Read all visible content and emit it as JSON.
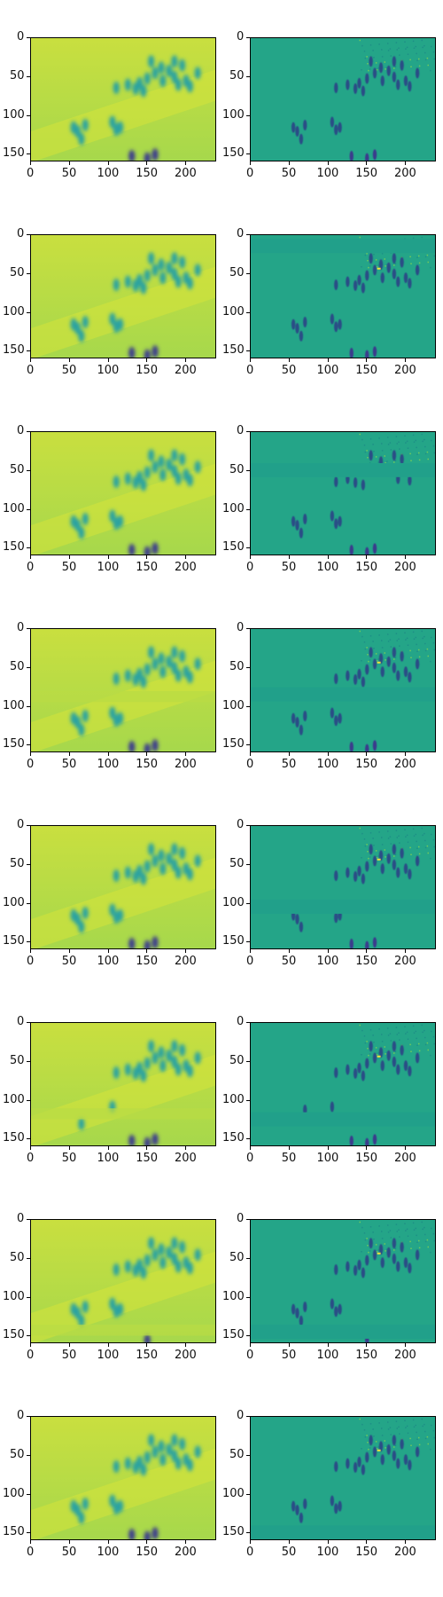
{
  "figure": {
    "type": "image-grid",
    "rows": 8,
    "cols": 2,
    "description_tags": [
      "reconstruction-left",
      "difference-right"
    ]
  },
  "axes": {
    "x_ticks": [
      "0",
      "50",
      "100",
      "150",
      "200"
    ],
    "x_tick_values": [
      0,
      50,
      100,
      150,
      200
    ],
    "y_ticks": [
      "0",
      "50",
      "100",
      "150"
    ],
    "y_tick_values": [
      0,
      50,
      100,
      150
    ],
    "x_range": [
      0,
      240
    ],
    "y_range": [
      0,
      160
    ]
  },
  "colors": {
    "left_bg_top": "#c9df3f",
    "left_bg_bottom": "#a6d84c",
    "left_blob": "#2aa3a0",
    "left_dark": "#3a3a8c",
    "right_bg": "#24a588",
    "right_dark": "#2b4d86",
    "right_bright": "#f1e33f",
    "right_band": "#21a08a"
  },
  "rows": [
    {
      "right_band_y": null,
      "left_band_y": null
    },
    {
      "right_band_y": 5,
      "left_band_y": null
    },
    {
      "right_band_y": 40,
      "left_band_y": null
    },
    {
      "right_band_y": 75,
      "left_band_y": 80
    },
    {
      "right_band_y": 95,
      "left_band_y": null
    },
    {
      "right_band_y": 115,
      "left_band_y": 110
    },
    {
      "right_band_y": 135,
      "left_band_y": 135
    },
    {
      "right_band_y": 140,
      "left_band_y": null
    }
  ]
}
